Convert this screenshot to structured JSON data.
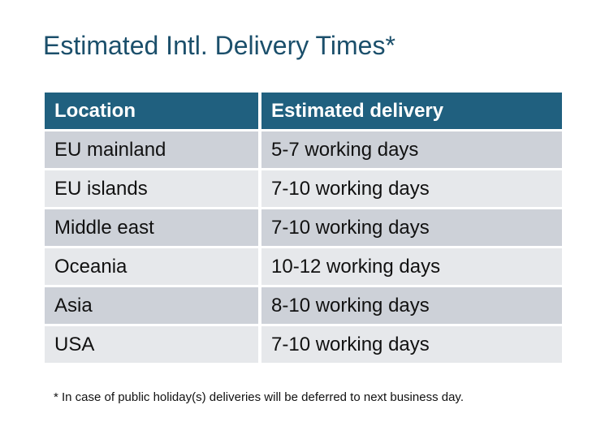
{
  "title": "Estimated Intl. Delivery Times*",
  "table": {
    "headers": [
      "Location",
      "Estimated delivery"
    ],
    "rows": [
      [
        "EU mainland",
        "5-7 working days"
      ],
      [
        "EU islands",
        "7-10 working days"
      ],
      [
        "Middle east",
        "7-10 working days"
      ],
      [
        "Oceania",
        "10-12 working days"
      ],
      [
        "Asia",
        "8-10 working days"
      ],
      [
        "USA",
        "7-10 working days"
      ]
    ]
  },
  "footnote": "* In case of public holiday(s) deliveries will be deferred to next business day.",
  "colors": {
    "header_bg": "#20607F",
    "title": "#1B4F6B",
    "row_dark": "#CDD1D8",
    "row_light": "#E6E8EB"
  }
}
